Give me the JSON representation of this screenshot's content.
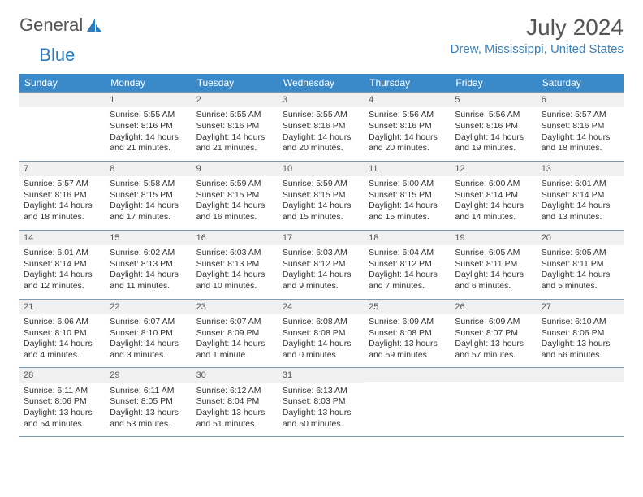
{
  "brand": {
    "part1": "General",
    "part2": "Blue"
  },
  "title": "July 2024",
  "location": "Drew, Mississippi, United States",
  "colors": {
    "header_bg": "#3a89c9",
    "brand_blue": "#2b7bbf",
    "location_color": "#3a7fb5",
    "border": "#7a9bb5",
    "daynum_bg": "#f0f0f0"
  },
  "dayNames": [
    "Sunday",
    "Monday",
    "Tuesday",
    "Wednesday",
    "Thursday",
    "Friday",
    "Saturday"
  ],
  "weeks": [
    [
      null,
      {
        "n": "1",
        "sr": "Sunrise: 5:55 AM",
        "ss": "Sunset: 8:16 PM",
        "d1": "Daylight: 14 hours",
        "d2": "and 21 minutes."
      },
      {
        "n": "2",
        "sr": "Sunrise: 5:55 AM",
        "ss": "Sunset: 8:16 PM",
        "d1": "Daylight: 14 hours",
        "d2": "and 21 minutes."
      },
      {
        "n": "3",
        "sr": "Sunrise: 5:55 AM",
        "ss": "Sunset: 8:16 PM",
        "d1": "Daylight: 14 hours",
        "d2": "and 20 minutes."
      },
      {
        "n": "4",
        "sr": "Sunrise: 5:56 AM",
        "ss": "Sunset: 8:16 PM",
        "d1": "Daylight: 14 hours",
        "d2": "and 20 minutes."
      },
      {
        "n": "5",
        "sr": "Sunrise: 5:56 AM",
        "ss": "Sunset: 8:16 PM",
        "d1": "Daylight: 14 hours",
        "d2": "and 19 minutes."
      },
      {
        "n": "6",
        "sr": "Sunrise: 5:57 AM",
        "ss": "Sunset: 8:16 PM",
        "d1": "Daylight: 14 hours",
        "d2": "and 18 minutes."
      }
    ],
    [
      {
        "n": "7",
        "sr": "Sunrise: 5:57 AM",
        "ss": "Sunset: 8:16 PM",
        "d1": "Daylight: 14 hours",
        "d2": "and 18 minutes."
      },
      {
        "n": "8",
        "sr": "Sunrise: 5:58 AM",
        "ss": "Sunset: 8:15 PM",
        "d1": "Daylight: 14 hours",
        "d2": "and 17 minutes."
      },
      {
        "n": "9",
        "sr": "Sunrise: 5:59 AM",
        "ss": "Sunset: 8:15 PM",
        "d1": "Daylight: 14 hours",
        "d2": "and 16 minutes."
      },
      {
        "n": "10",
        "sr": "Sunrise: 5:59 AM",
        "ss": "Sunset: 8:15 PM",
        "d1": "Daylight: 14 hours",
        "d2": "and 15 minutes."
      },
      {
        "n": "11",
        "sr": "Sunrise: 6:00 AM",
        "ss": "Sunset: 8:15 PM",
        "d1": "Daylight: 14 hours",
        "d2": "and 15 minutes."
      },
      {
        "n": "12",
        "sr": "Sunrise: 6:00 AM",
        "ss": "Sunset: 8:14 PM",
        "d1": "Daylight: 14 hours",
        "d2": "and 14 minutes."
      },
      {
        "n": "13",
        "sr": "Sunrise: 6:01 AM",
        "ss": "Sunset: 8:14 PM",
        "d1": "Daylight: 14 hours",
        "d2": "and 13 minutes."
      }
    ],
    [
      {
        "n": "14",
        "sr": "Sunrise: 6:01 AM",
        "ss": "Sunset: 8:14 PM",
        "d1": "Daylight: 14 hours",
        "d2": "and 12 minutes."
      },
      {
        "n": "15",
        "sr": "Sunrise: 6:02 AM",
        "ss": "Sunset: 8:13 PM",
        "d1": "Daylight: 14 hours",
        "d2": "and 11 minutes."
      },
      {
        "n": "16",
        "sr": "Sunrise: 6:03 AM",
        "ss": "Sunset: 8:13 PM",
        "d1": "Daylight: 14 hours",
        "d2": "and 10 minutes."
      },
      {
        "n": "17",
        "sr": "Sunrise: 6:03 AM",
        "ss": "Sunset: 8:12 PM",
        "d1": "Daylight: 14 hours",
        "d2": "and 9 minutes."
      },
      {
        "n": "18",
        "sr": "Sunrise: 6:04 AM",
        "ss": "Sunset: 8:12 PM",
        "d1": "Daylight: 14 hours",
        "d2": "and 7 minutes."
      },
      {
        "n": "19",
        "sr": "Sunrise: 6:05 AM",
        "ss": "Sunset: 8:11 PM",
        "d1": "Daylight: 14 hours",
        "d2": "and 6 minutes."
      },
      {
        "n": "20",
        "sr": "Sunrise: 6:05 AM",
        "ss": "Sunset: 8:11 PM",
        "d1": "Daylight: 14 hours",
        "d2": "and 5 minutes."
      }
    ],
    [
      {
        "n": "21",
        "sr": "Sunrise: 6:06 AM",
        "ss": "Sunset: 8:10 PM",
        "d1": "Daylight: 14 hours",
        "d2": "and 4 minutes."
      },
      {
        "n": "22",
        "sr": "Sunrise: 6:07 AM",
        "ss": "Sunset: 8:10 PM",
        "d1": "Daylight: 14 hours",
        "d2": "and 3 minutes."
      },
      {
        "n": "23",
        "sr": "Sunrise: 6:07 AM",
        "ss": "Sunset: 8:09 PM",
        "d1": "Daylight: 14 hours",
        "d2": "and 1 minute."
      },
      {
        "n": "24",
        "sr": "Sunrise: 6:08 AM",
        "ss": "Sunset: 8:08 PM",
        "d1": "Daylight: 14 hours",
        "d2": "and 0 minutes."
      },
      {
        "n": "25",
        "sr": "Sunrise: 6:09 AM",
        "ss": "Sunset: 8:08 PM",
        "d1": "Daylight: 13 hours",
        "d2": "and 59 minutes."
      },
      {
        "n": "26",
        "sr": "Sunrise: 6:09 AM",
        "ss": "Sunset: 8:07 PM",
        "d1": "Daylight: 13 hours",
        "d2": "and 57 minutes."
      },
      {
        "n": "27",
        "sr": "Sunrise: 6:10 AM",
        "ss": "Sunset: 8:06 PM",
        "d1": "Daylight: 13 hours",
        "d2": "and 56 minutes."
      }
    ],
    [
      {
        "n": "28",
        "sr": "Sunrise: 6:11 AM",
        "ss": "Sunset: 8:06 PM",
        "d1": "Daylight: 13 hours",
        "d2": "and 54 minutes."
      },
      {
        "n": "29",
        "sr": "Sunrise: 6:11 AM",
        "ss": "Sunset: 8:05 PM",
        "d1": "Daylight: 13 hours",
        "d2": "and 53 minutes."
      },
      {
        "n": "30",
        "sr": "Sunrise: 6:12 AM",
        "ss": "Sunset: 8:04 PM",
        "d1": "Daylight: 13 hours",
        "d2": "and 51 minutes."
      },
      {
        "n": "31",
        "sr": "Sunrise: 6:13 AM",
        "ss": "Sunset: 8:03 PM",
        "d1": "Daylight: 13 hours",
        "d2": "and 50 minutes."
      },
      null,
      null,
      null
    ]
  ]
}
